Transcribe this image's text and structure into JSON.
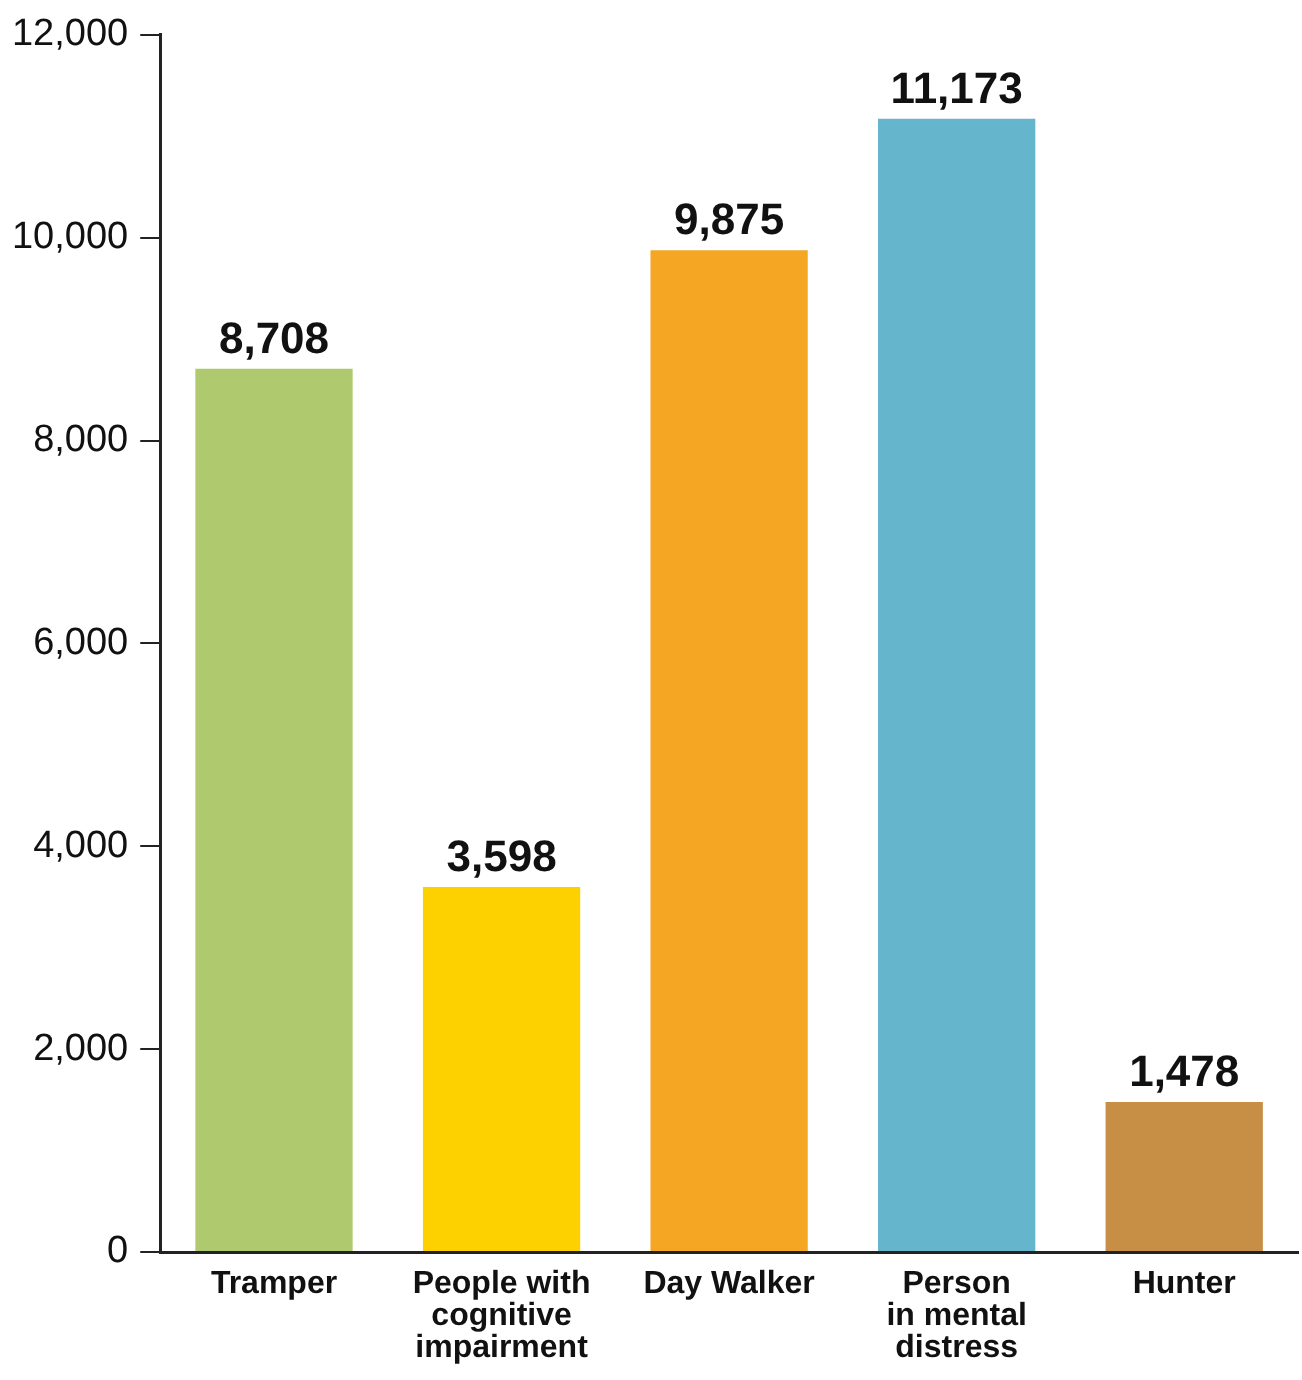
{
  "chart_data": {
    "type": "bar",
    "categories": [
      "Tramper",
      "People with\ncognitive\nimpairment",
      "Day Walker",
      "Person\nin mental\ndistress",
      "Hunter"
    ],
    "values": [
      8708,
      3598,
      9875,
      11173,
      1478
    ],
    "colors": [
      "#afc96e",
      "#fdd000",
      "#f5a623",
      "#65b5cc",
      "#c68f45"
    ],
    "ylim": [
      0,
      12000
    ],
    "yticks": [
      {
        "value": 0,
        "label": "0"
      },
      {
        "value": 2000,
        "label": "2,000"
      },
      {
        "value": 4000,
        "label": "4,000"
      },
      {
        "value": 6000,
        "label": "6,000"
      },
      {
        "value": 8000,
        "label": "8,000"
      },
      {
        "value": 10000,
        "label": "10,000"
      },
      {
        "value": 12000,
        "label": "12,000"
      }
    ],
    "grid": false,
    "legend": false,
    "value_labels": [
      "8,708",
      "3,598",
      "9,875",
      "11,173",
      "1,478"
    ]
  }
}
